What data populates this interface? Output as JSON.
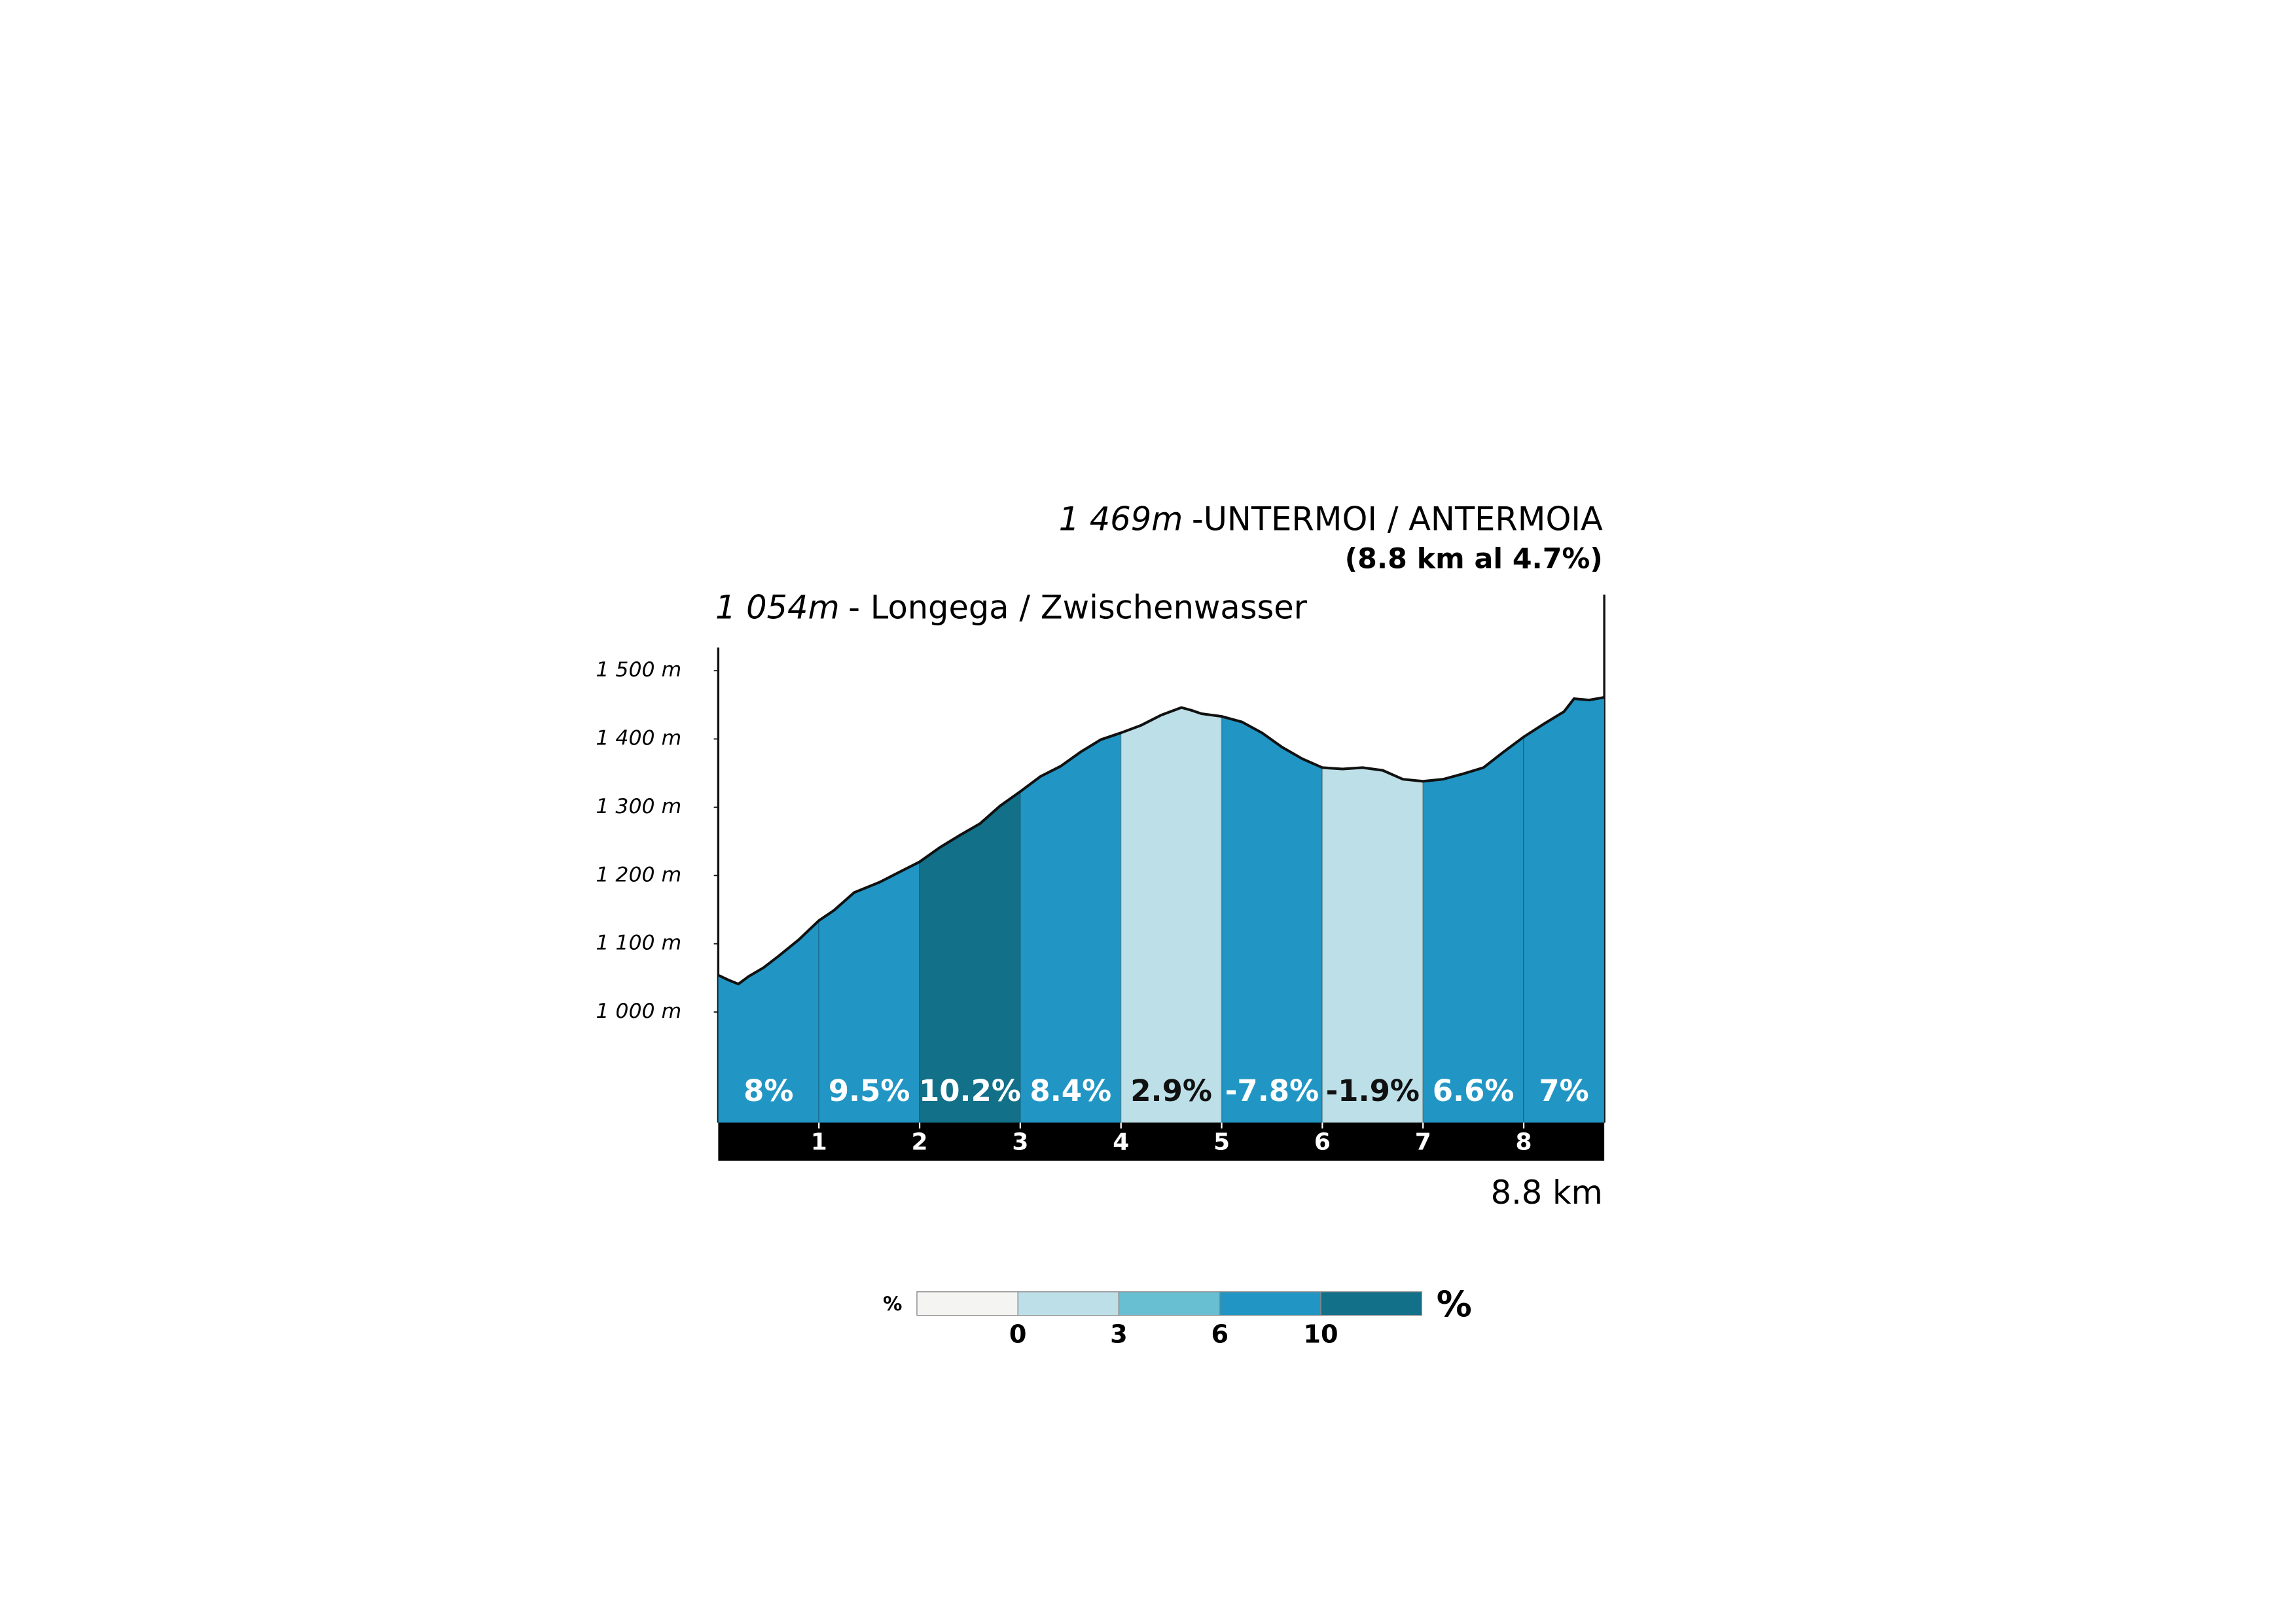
{
  "chart_data": {
    "type": "profile",
    "summit": {
      "altitude": "1 469m",
      "name": "-UNTERMOI / ANTERMOIA",
      "summary": "(8.8 km al 4.7%)"
    },
    "start": {
      "altitude": "1 054m",
      "name": "- Longega / Zwischenwasser"
    },
    "distance_label": "8.8 km",
    "x": [
      0,
      0.1,
      0.2,
      0.3,
      0.45,
      0.6,
      0.8,
      1.0,
      1.15,
      1.35,
      1.6,
      1.8,
      2.0,
      2.2,
      2.4,
      2.6,
      2.8,
      3.0,
      3.2,
      3.4,
      3.6,
      3.8,
      4.0,
      4.2,
      4.4,
      4.6,
      4.7,
      4.8,
      5.0,
      5.2,
      5.4,
      5.6,
      5.8,
      6.0,
      6.2,
      6.4,
      6.6,
      6.8,
      7.0,
      7.2,
      7.4,
      7.6,
      7.8,
      8.0,
      8.2,
      8.4,
      8.5,
      8.65,
      8.8
    ],
    "elevation": [
      1054,
      1047,
      1041,
      1052,
      1065,
      1082,
      1106,
      1134,
      1149,
      1175,
      1190,
      1205,
      1220,
      1241,
      1259,
      1276,
      1302,
      1323,
      1345,
      1360,
      1381,
      1399,
      1409,
      1420,
      1435,
      1446,
      1442,
      1437,
      1433,
      1425,
      1409,
      1388,
      1371,
      1358,
      1356,
      1358,
      1354,
      1341,
      1338,
      1341,
      1349,
      1358,
      1381,
      1403,
      1422,
      1440,
      1459,
      1457,
      1461
    ],
    "segments": [
      {
        "start": 0,
        "end": 1,
        "gradient": 8,
        "label": "8%",
        "color": "#2196c4"
      },
      {
        "start": 1,
        "end": 2,
        "gradient": 9.5,
        "label": "9.5%",
        "color": "#2196c4"
      },
      {
        "start": 2,
        "end": 3,
        "gradient": 10.2,
        "label": "10.2%",
        "color": "#127089"
      },
      {
        "start": 3,
        "end": 4,
        "gradient": 8.4,
        "label": "8.4%",
        "color": "#2196c4"
      },
      {
        "start": 4,
        "end": 5,
        "gradient": 2.9,
        "label": "2.9%",
        "color": "#bde0e8"
      },
      {
        "start": 5,
        "end": 6,
        "gradient": -7.8,
        "label": "-7.8%",
        "color": "#2196c4"
      },
      {
        "start": 6,
        "end": 7,
        "gradient": -1.9,
        "label": "-1.9%",
        "color": "#bde0e8"
      },
      {
        "start": 7,
        "end": 8,
        "gradient": 6.6,
        "label": "6.6%",
        "color": "#2196c4"
      },
      {
        "start": 8,
        "end": 8.8,
        "gradient": 7,
        "label": "7%",
        "color": "#2196c4"
      }
    ],
    "xlim": [
      0,
      8.8
    ],
    "xticks": [
      1,
      2,
      3,
      4,
      5,
      6,
      7,
      8
    ],
    "ylim": [
      838,
      1534
    ],
    "yticks": [
      {
        "value": 1000,
        "label": "1 000 m"
      },
      {
        "value": 1100,
        "label": "1 100 m"
      },
      {
        "value": 1200,
        "label": "1 200 m"
      },
      {
        "value": 1300,
        "label": "1 300 m"
      },
      {
        "value": 1400,
        "label": "1 400 m"
      },
      {
        "value": 1500,
        "label": "1 500 m"
      }
    ],
    "line_color": "#111111",
    "legend": {
      "unit": "%",
      "colors": [
        "#f4f5f2",
        "#bde0e8",
        "#67bfd1",
        "#2196c4",
        "#127089"
      ],
      "ticks": [
        0,
        3,
        6,
        10
      ]
    }
  }
}
